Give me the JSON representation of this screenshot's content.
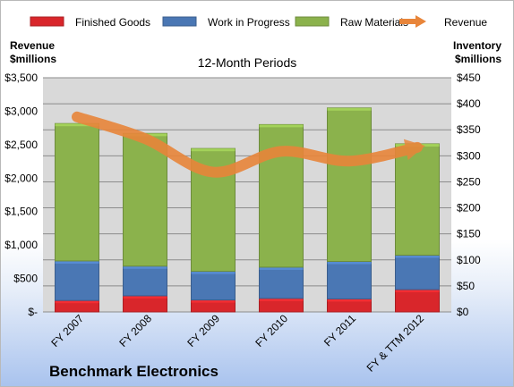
{
  "chart_data": {
    "type": "bar",
    "subtype": "stacked-bar-with-line",
    "title": "Benchmark Electronics",
    "subtitle": "12-Month Periods",
    "categories": [
      "FY 2007",
      "FY 2008",
      "FY 2009",
      "FY 2010",
      "FY 2011",
      "FY & TTM 2012"
    ],
    "series": [
      {
        "name": "Finished Goods",
        "type": "bar",
        "axis": "right",
        "color": "#d9262b",
        "values": [
          22,
          31,
          23,
          26,
          25,
          43
        ]
      },
      {
        "name": "Work in Progress",
        "type": "bar",
        "axis": "right",
        "color": "#4a77b4",
        "values": [
          76,
          57,
          55,
          60,
          72,
          66
        ]
      },
      {
        "name": "Raw Materials",
        "type": "bar",
        "axis": "right",
        "color": "#8bb24c",
        "values": [
          264,
          255,
          236,
          274,
          295,
          214
        ]
      },
      {
        "name": "Revenue",
        "type": "line",
        "axis": "left",
        "color": "#e8853a",
        "values": [
          2915,
          2590,
          2090,
          2400,
          2255,
          2460
        ]
      }
    ],
    "left_axis": {
      "label": "Revenue $millions",
      "range": [
        0,
        3500
      ],
      "step": 500,
      "ticks": [
        "$-",
        "$500",
        "$1,000",
        "$1,500",
        "$2,000",
        "$2,500",
        "$3,000",
        "$3,500"
      ]
    },
    "right_axis": {
      "label": "Inventory $millions",
      "range": [
        0,
        450
      ],
      "step": 50,
      "ticks": [
        "$0",
        "$50",
        "$100",
        "$150",
        "$200",
        "$250",
        "$300",
        "$350",
        "$400",
        "$450"
      ]
    },
    "legend_position": "top",
    "grid": true,
    "plot_background": "#d9d9d9"
  }
}
